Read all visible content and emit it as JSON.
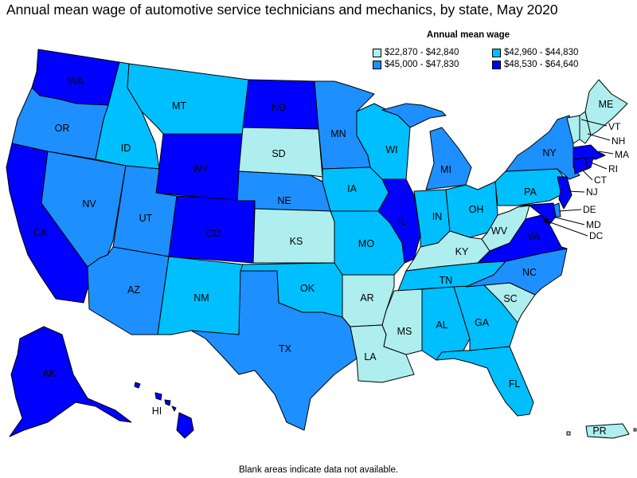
{
  "title": "Annual mean wage of automotive service technicians and mechanics, by state, May 2020",
  "legend": {
    "title": "Annual mean wage",
    "items": [
      {
        "label": "$22,870 - $42,840",
        "color": "#aeeeee"
      },
      {
        "label": "$42,960 - $44,830",
        "color": "#00bfff"
      },
      {
        "label": "$45,000 - $47,830",
        "color": "#1e8fff"
      },
      {
        "label": "$48,530 - $64,640",
        "color": "#0000ff"
      }
    ]
  },
  "footnote": "Blank areas indicate data not available.",
  "states": {
    "WA": "WA",
    "OR": "OR",
    "CA": "CA",
    "NV": "NV",
    "ID": "ID",
    "MT": "MT",
    "WY": "WY",
    "UT": "UT",
    "AZ": "AZ",
    "CO": "CO",
    "NM": "NM",
    "ND": "ND",
    "SD": "SD",
    "NE": "NE",
    "KS": "KS",
    "OK": "OK",
    "TX": "TX",
    "MN": "MN",
    "IA": "IA",
    "MO": "MO",
    "AR": "AR",
    "LA": "LA",
    "WI": "WI",
    "IL": "IL",
    "MI": "MI",
    "IN": "IN",
    "OH": "OH",
    "KY": "KY",
    "TN": "TN",
    "MS": "MS",
    "AL": "AL",
    "GA": "GA",
    "FL": "FL",
    "SC": "SC",
    "NC": "NC",
    "VA": "VA",
    "WV": "WV",
    "PA": "PA",
    "NY": "NY",
    "ME": "ME",
    "AK": "AK",
    "HI": "HI",
    "PR": "PR",
    "VT": "VT",
    "NH": "NH",
    "MA": "MA",
    "RI": "RI",
    "CT": "CT",
    "NJ": "NJ",
    "DE": "DE",
    "MD": "MD",
    "DC": "DC"
  }
}
